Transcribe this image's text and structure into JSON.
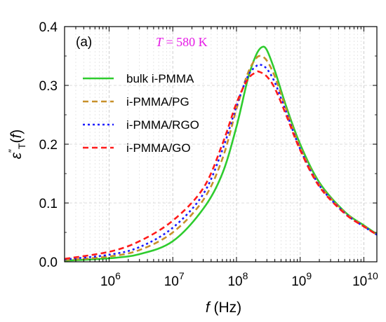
{
  "chart_data": {
    "type": "line",
    "panel_label": "(a)",
    "annotation": {
      "var": "T",
      "eq": " = 580 ",
      "unit": "K",
      "color": "#e619e6"
    },
    "xlabel": {
      "var": "f",
      "unit": " (Hz)"
    },
    "ylabel": {
      "var": "ε",
      "sup": "″",
      "sub": "T",
      "arg_open": "(",
      "arg_var": "f",
      "arg_close": ")"
    },
    "x_scale": "log",
    "xlim": [
      200000,
      16000000000
    ],
    "ylim": [
      0,
      0.4
    ],
    "x_ticks": [
      {
        "base": "10",
        "exp": "6",
        "value": 1000000
      },
      {
        "base": "10",
        "exp": "7",
        "value": 10000000
      },
      {
        "base": "10",
        "exp": "8",
        "value": 100000000
      },
      {
        "base": "10",
        "exp": "9",
        "value": 1000000000
      },
      {
        "base": "10",
        "exp": "10",
        "value": 10000000000
      }
    ],
    "y_ticks": [
      {
        "label": "0.0",
        "value": 0.0
      },
      {
        "label": "0.1",
        "value": 0.1
      },
      {
        "label": "0.2",
        "value": 0.2
      },
      {
        "label": "0.3",
        "value": 0.3
      },
      {
        "label": "0.4",
        "value": 0.4
      }
    ],
    "grid": true,
    "legend_position": "upper-left",
    "series": [
      {
        "name": "bulk i-PMMA",
        "color": "#2ecc2e",
        "dash": "solid",
        "x": [
          200000,
          1000000,
          3000000,
          10000000,
          30000000,
          60000000,
          100000000,
          150000000,
          200000000,
          250000000,
          300000000,
          400000000,
          600000000,
          1000000000,
          2000000000,
          5000000000,
          10000000000,
          16000000000
        ],
        "y": [
          0.002,
          0.006,
          0.013,
          0.035,
          0.09,
          0.15,
          0.23,
          0.31,
          0.35,
          0.365,
          0.36,
          0.325,
          0.265,
          0.2,
          0.135,
          0.085,
          0.062,
          0.047
        ]
      },
      {
        "name": "i-PMMA/PG",
        "color": "#c8902a",
        "dash": "dashed",
        "x": [
          200000,
          1000000,
          3000000,
          10000000,
          30000000,
          60000000,
          100000000,
          150000000,
          200000000,
          240000000,
          300000000,
          400000000,
          600000000,
          1000000000,
          2000000000,
          5000000000,
          10000000000,
          16000000000
        ],
        "y": [
          0.003,
          0.009,
          0.02,
          0.05,
          0.105,
          0.175,
          0.26,
          0.32,
          0.345,
          0.35,
          0.342,
          0.315,
          0.26,
          0.195,
          0.132,
          0.084,
          0.061,
          0.046
        ]
      },
      {
        "name": "i-PMMA/RGO",
        "color": "#1a1aff",
        "dash": "dotted",
        "x": [
          200000,
          1000000,
          3000000,
          10000000,
          30000000,
          60000000,
          100000000,
          150000000,
          200000000,
          240000000,
          300000000,
          400000000,
          600000000,
          1000000000,
          2000000000,
          5000000000,
          10000000000,
          16000000000
        ],
        "y": [
          0.004,
          0.012,
          0.025,
          0.058,
          0.115,
          0.19,
          0.265,
          0.315,
          0.332,
          0.335,
          0.328,
          0.305,
          0.255,
          0.192,
          0.13,
          0.083,
          0.06,
          0.046
        ]
      },
      {
        "name": "i-PMMA/GO",
        "color": "#ff1a1a",
        "dash": "dashed",
        "x": [
          200000,
          1000000,
          3000000,
          10000000,
          30000000,
          60000000,
          100000000,
          150000000,
          200000000,
          230000000,
          300000000,
          400000000,
          600000000,
          1000000000,
          2000000000,
          5000000000,
          10000000000,
          16000000000
        ],
        "y": [
          0.005,
          0.017,
          0.035,
          0.07,
          0.125,
          0.2,
          0.27,
          0.31,
          0.322,
          0.323,
          0.315,
          0.295,
          0.25,
          0.19,
          0.128,
          0.082,
          0.06,
          0.046
        ]
      }
    ]
  }
}
